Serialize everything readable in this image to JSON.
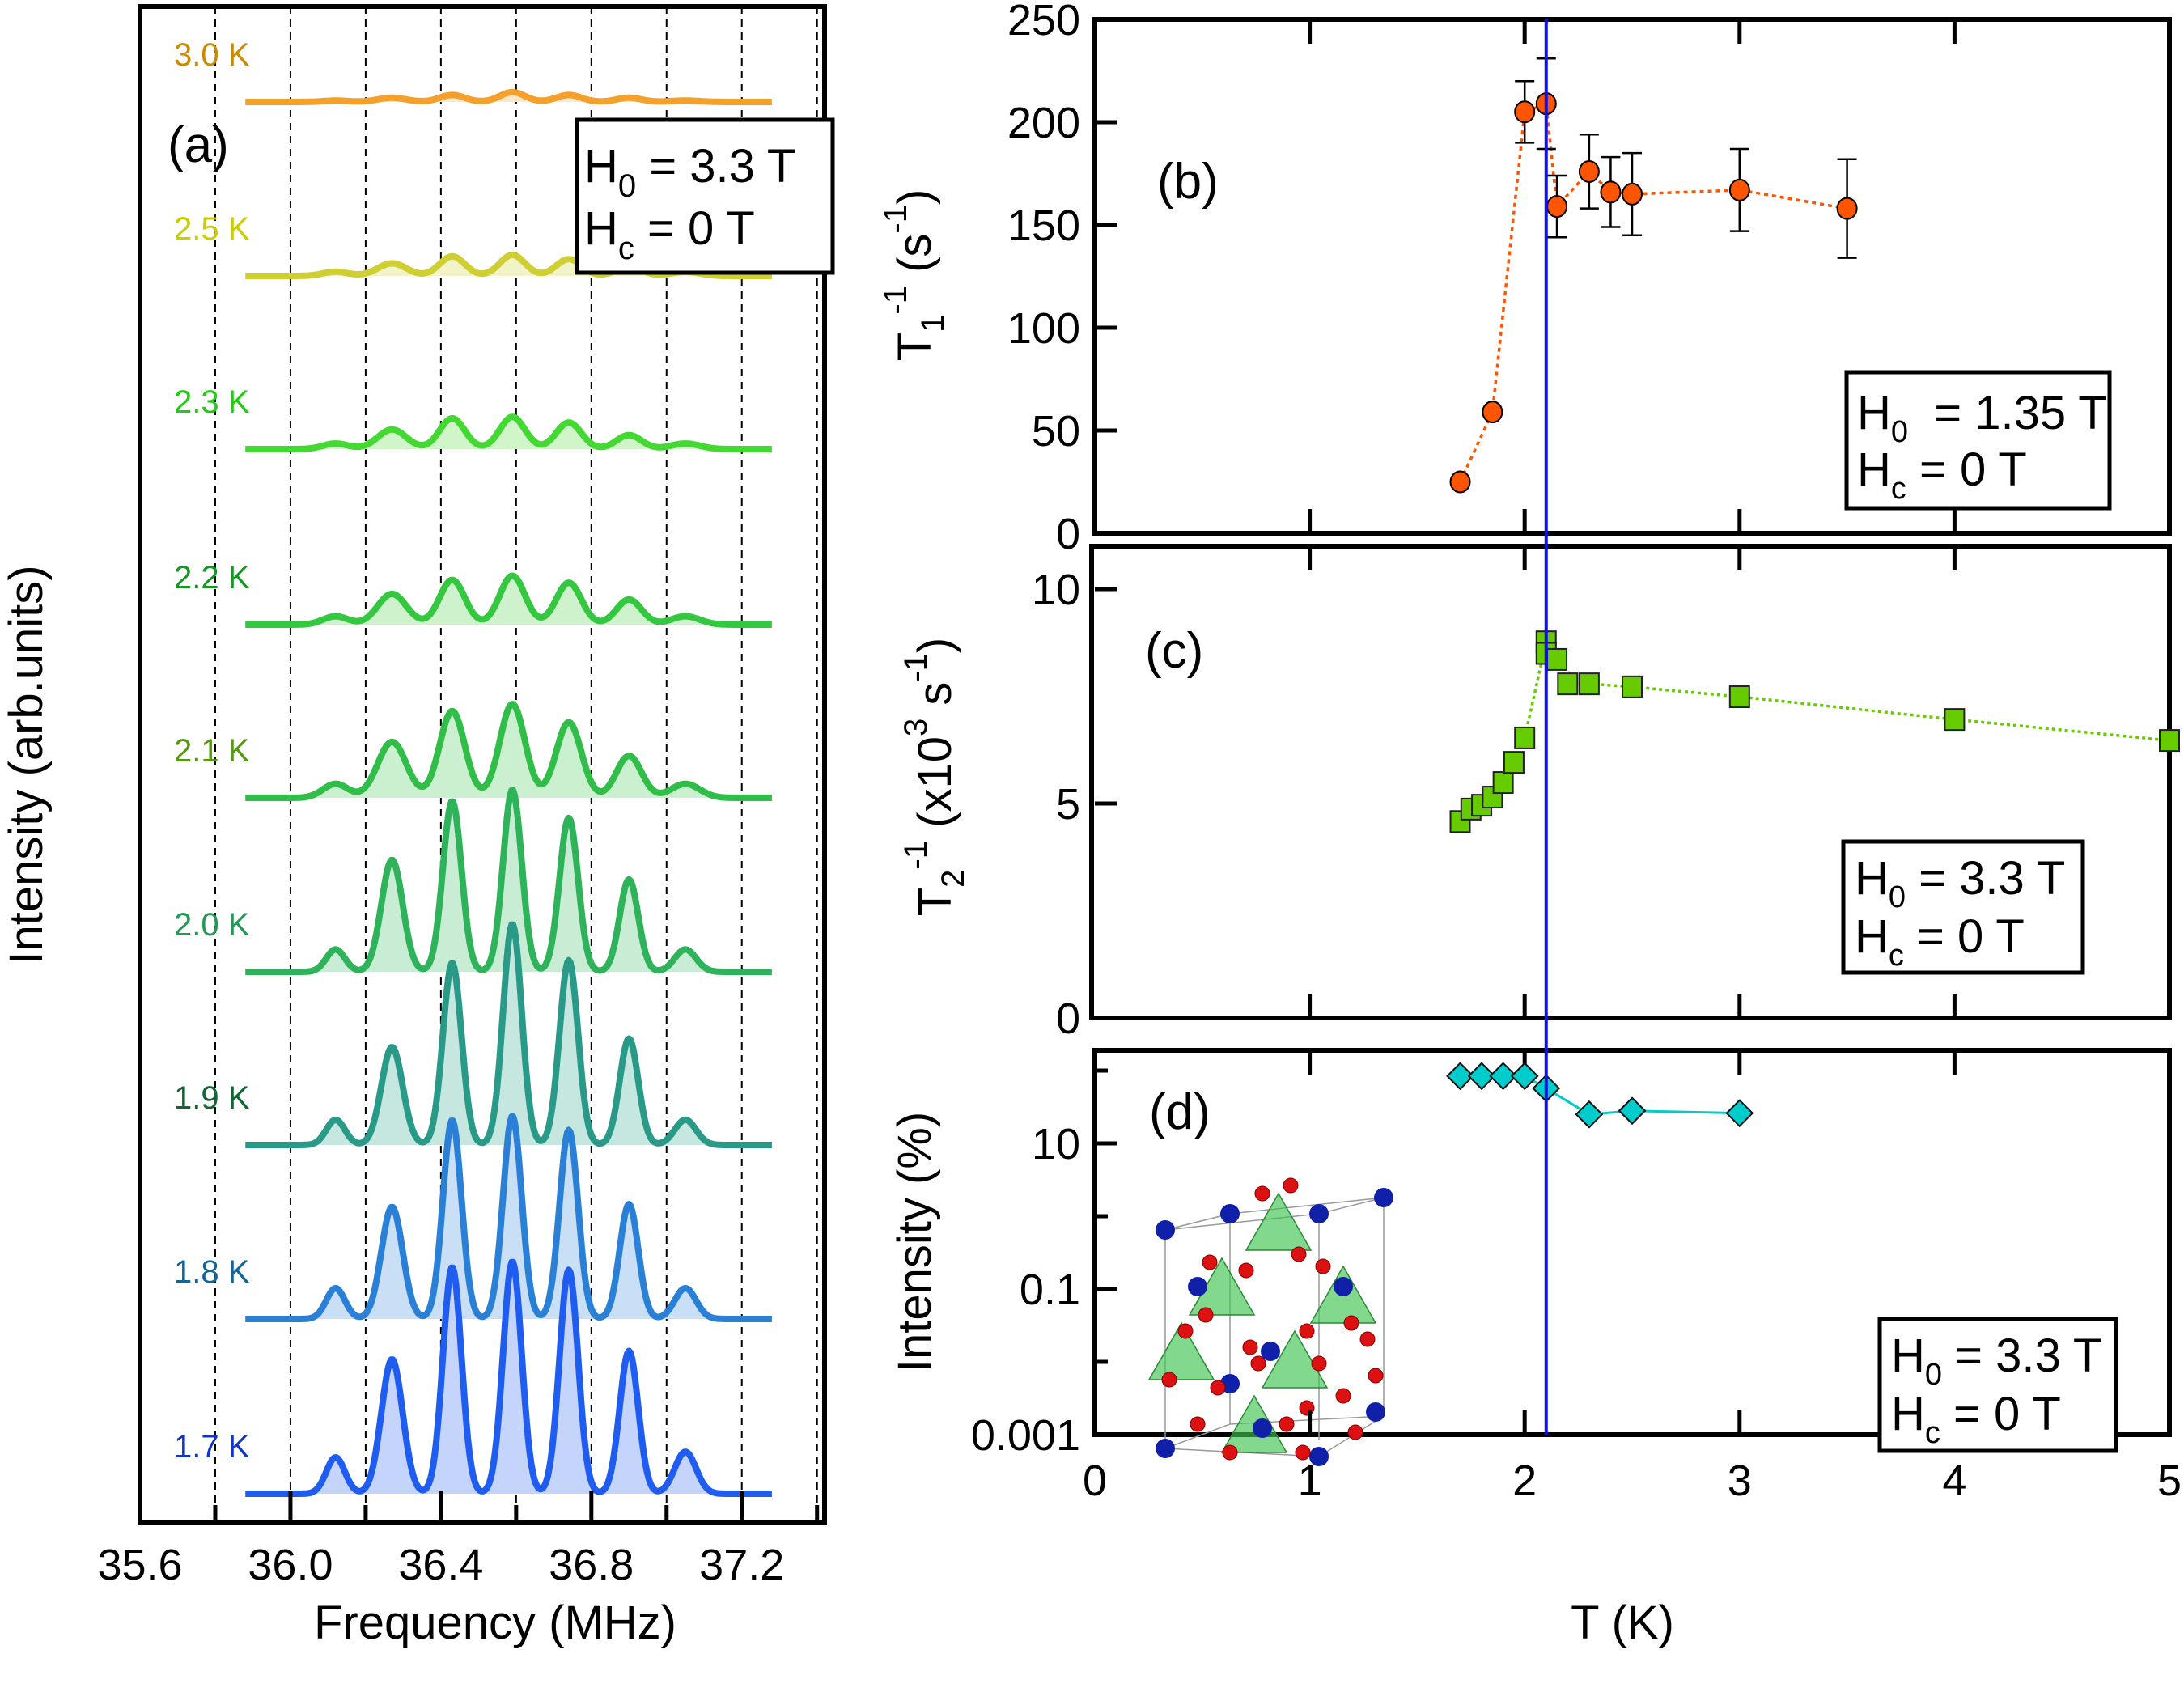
{
  "chart_data": [
    {
      "id": "a",
      "type": "line",
      "panel_label": "(a)",
      "title": "",
      "xlabel": "Frequency (MHz)",
      "ylabel": "Intensity (arb.units)",
      "xlim": [
        35.6,
        37.42
      ],
      "x_ticks": [
        "35.6",
        "36.0",
        "36.4",
        "36.8",
        "37.2"
      ],
      "x_tick_values": [
        35.6,
        36.0,
        36.4,
        36.8,
        37.2
      ],
      "x_minor_ticks": [
        35.8,
        36.2,
        36.6,
        37.0,
        37.4
      ],
      "grid": "vertical dashed at every 0.2 MHz",
      "legend": {
        "line1_main": "H",
        "line1_sub": "0",
        "line1_rest": " = 3.3 T",
        "line2_main": "H",
        "line2_sub": "c",
        "line2_rest": " = 0 T",
        "placement": "top-right"
      },
      "peak_centers_MHz": [
        36.12,
        36.27,
        36.43,
        36.59,
        36.74,
        36.9,
        37.05
      ],
      "freq_range_MHz": [
        35.88,
        37.28
      ],
      "series": [
        {
          "name": "3.0 K",
          "label": "3.0 K",
          "color": "#f5a02a",
          "fill": "#fde8cc",
          "label_color": "#cc8a00",
          "amplitudes": [
            1,
            3,
            5,
            7,
            5,
            3,
            1
          ]
        },
        {
          "name": "2.5 K",
          "label": "2.5 K",
          "color": "#cfcf33",
          "fill": "#f3f3c8",
          "label_color": "#cccc00",
          "amplitudes": [
            3,
            9,
            14,
            15,
            12,
            7,
            3
          ]
        },
        {
          "name": "2.3 K",
          "label": "2.3 K",
          "color": "#44d832",
          "fill": "#cff5c8",
          "label_color": "#22cc11",
          "amplitudes": [
            4,
            14,
            22,
            23,
            19,
            10,
            4
          ]
        },
        {
          "name": "2.2 K",
          "label": "2.2 K",
          "color": "#33c840",
          "fill": "#cdf2cc",
          "label_color": "#119922",
          "amplitudes": [
            6,
            22,
            32,
            35,
            30,
            18,
            6
          ]
        },
        {
          "name": "2.1 K",
          "label": "2.1 K",
          "color": "#30bd48",
          "fill": "#cbf0cf",
          "label_color": "#559911",
          "amplitudes": [
            10,
            40,
            62,
            67,
            54,
            30,
            10
          ]
        },
        {
          "name": "2.0 K",
          "label": "2.0 K",
          "color": "#2fb35a",
          "fill": "#c8ecd4",
          "label_color": "#229955",
          "amplitudes": [
            16,
            80,
            122,
            130,
            110,
            66,
            16
          ]
        },
        {
          "name": "1.9 K",
          "label": "1.9 K",
          "color": "#2a9a88",
          "fill": "#c6e6e0",
          "label_color": "#116633",
          "amplitudes": [
            18,
            70,
            130,
            158,
            132,
            76,
            18
          ]
        },
        {
          "name": "1.8 K",
          "label": "1.8 K",
          "color": "#2a80d6",
          "fill": "#c8dff5",
          "label_color": "#116699",
          "amplitudes": [
            22,
            80,
            142,
            145,
            135,
            82,
            22
          ]
        },
        {
          "name": "1.7 K",
          "label": "1.7 K",
          "color": "#1f5cf0",
          "fill": "#c4d4fa",
          "label_color": "#1133cc",
          "amplitudes": [
            26,
            96,
            162,
            166,
            160,
            102,
            30
          ]
        }
      ]
    },
    {
      "id": "b",
      "type": "scatter",
      "panel_label": "(b)",
      "ylabel_main": "T",
      "ylabel_sub": "1",
      "ylabel_sup": "-1",
      "ylabel_rest": " (s",
      "ylabel_rest_sup": "-1",
      "ylabel_close": ")",
      "xlim": [
        0,
        5
      ],
      "ylim": [
        0,
        250
      ],
      "y_ticks": [
        "0",
        "50",
        "100",
        "150",
        "200",
        "250"
      ],
      "y_tick_values": [
        0,
        50,
        100,
        150,
        200,
        250
      ],
      "color": "#ff5500",
      "line_style": "dotted",
      "legend": {
        "line1_main": "H",
        "line1_sub": "0",
        "line1_rest": "  = 1.35 T",
        "line2_main": "H",
        "line2_sub": "c",
        "line2_rest": " = 0 T",
        "placement": "bottom-right"
      },
      "x": [
        1.7,
        1.85,
        2.0,
        2.1,
        2.15,
        2.3,
        2.4,
        2.5,
        3.0,
        3.5
      ],
      "y": [
        25,
        59,
        205,
        209,
        159,
        176,
        166,
        165,
        167,
        158
      ],
      "yerr": [
        null,
        null,
        15,
        22,
        15,
        18,
        17,
        20,
        20,
        24
      ]
    },
    {
      "id": "c",
      "type": "scatter",
      "panel_label": "(c)",
      "ylabel_main": "T",
      "ylabel_sub": "2",
      "ylabel_sup": "-1",
      "ylabel_rest": " (x10",
      "ylabel_rest_sup": "3",
      "ylabel_rest2": "  s",
      "ylabel_rest2_sup": "-1",
      "ylabel_close": ")",
      "xlim": [
        0,
        5
      ],
      "ylim": [
        0,
        10.6
      ],
      "y_ticks": [
        "0",
        "5",
        "10"
      ],
      "y_tick_values": [
        0,
        5,
        10
      ],
      "color": "#66cc00",
      "line_style": "dotted",
      "legend": {
        "line1_main": "H",
        "line1_sub": "0",
        "line1_rest": "  = 3.3 T",
        "line2_main": "H",
        "line2_sub": "c",
        "line2_rest": " = 0 T",
        "placement": "bottom-right"
      },
      "x": [
        1.7,
        1.75,
        1.8,
        1.85,
        1.9,
        1.95,
        2.0,
        2.1,
        2.1,
        2.15,
        2.2,
        2.3,
        2.5,
        3.0,
        4.0,
        5.0
      ],
      "y": [
        4.58,
        4.87,
        4.96,
        5.15,
        5.49,
        5.96,
        6.53,
        8.77,
        8.5,
        8.36,
        7.79,
        7.79,
        7.72,
        7.49,
        6.96,
        6.47
      ]
    },
    {
      "id": "d",
      "type": "scatter",
      "panel_label": "(d)",
      "ylabel": "Intensity (%)",
      "xlabel": "T (K)",
      "yscale": "log",
      "xlim": [
        0,
        5
      ],
      "ylim": [
        0.001,
        130
      ],
      "x_ticks": [
        "0",
        "1",
        "2",
        "3",
        "4",
        "5"
      ],
      "x_tick_values": [
        0,
        1,
        2,
        3,
        4,
        5
      ],
      "y_ticks": [
        "0.001",
        "0.1",
        "10"
      ],
      "y_tick_values": [
        0.001,
        0.1,
        10
      ],
      "y_minor_ticks": [
        0.01,
        1,
        100
      ],
      "color": "#00cccc",
      "line_style": "solid",
      "legend": {
        "line1_main": "H",
        "line1_sub": "0",
        "line1_rest": "  = 3.3 T",
        "line2_main": "H",
        "line2_sub": "c",
        "line2_rest": " = 0 T",
        "placement": "bottom-right"
      },
      "inset": "crystal-structure illustration (blue and red spheres, green tetrahedra in unit cell)",
      "x": [
        1.7,
        1.8,
        1.9,
        2.0,
        2.1,
        2.3,
        2.5,
        3.0
      ],
      "y": [
        84,
        84,
        84,
        84,
        57,
        25,
        28,
        26
      ]
    }
  ],
  "transition_line_T": 2.1,
  "transition_line_color": "#1010e0"
}
